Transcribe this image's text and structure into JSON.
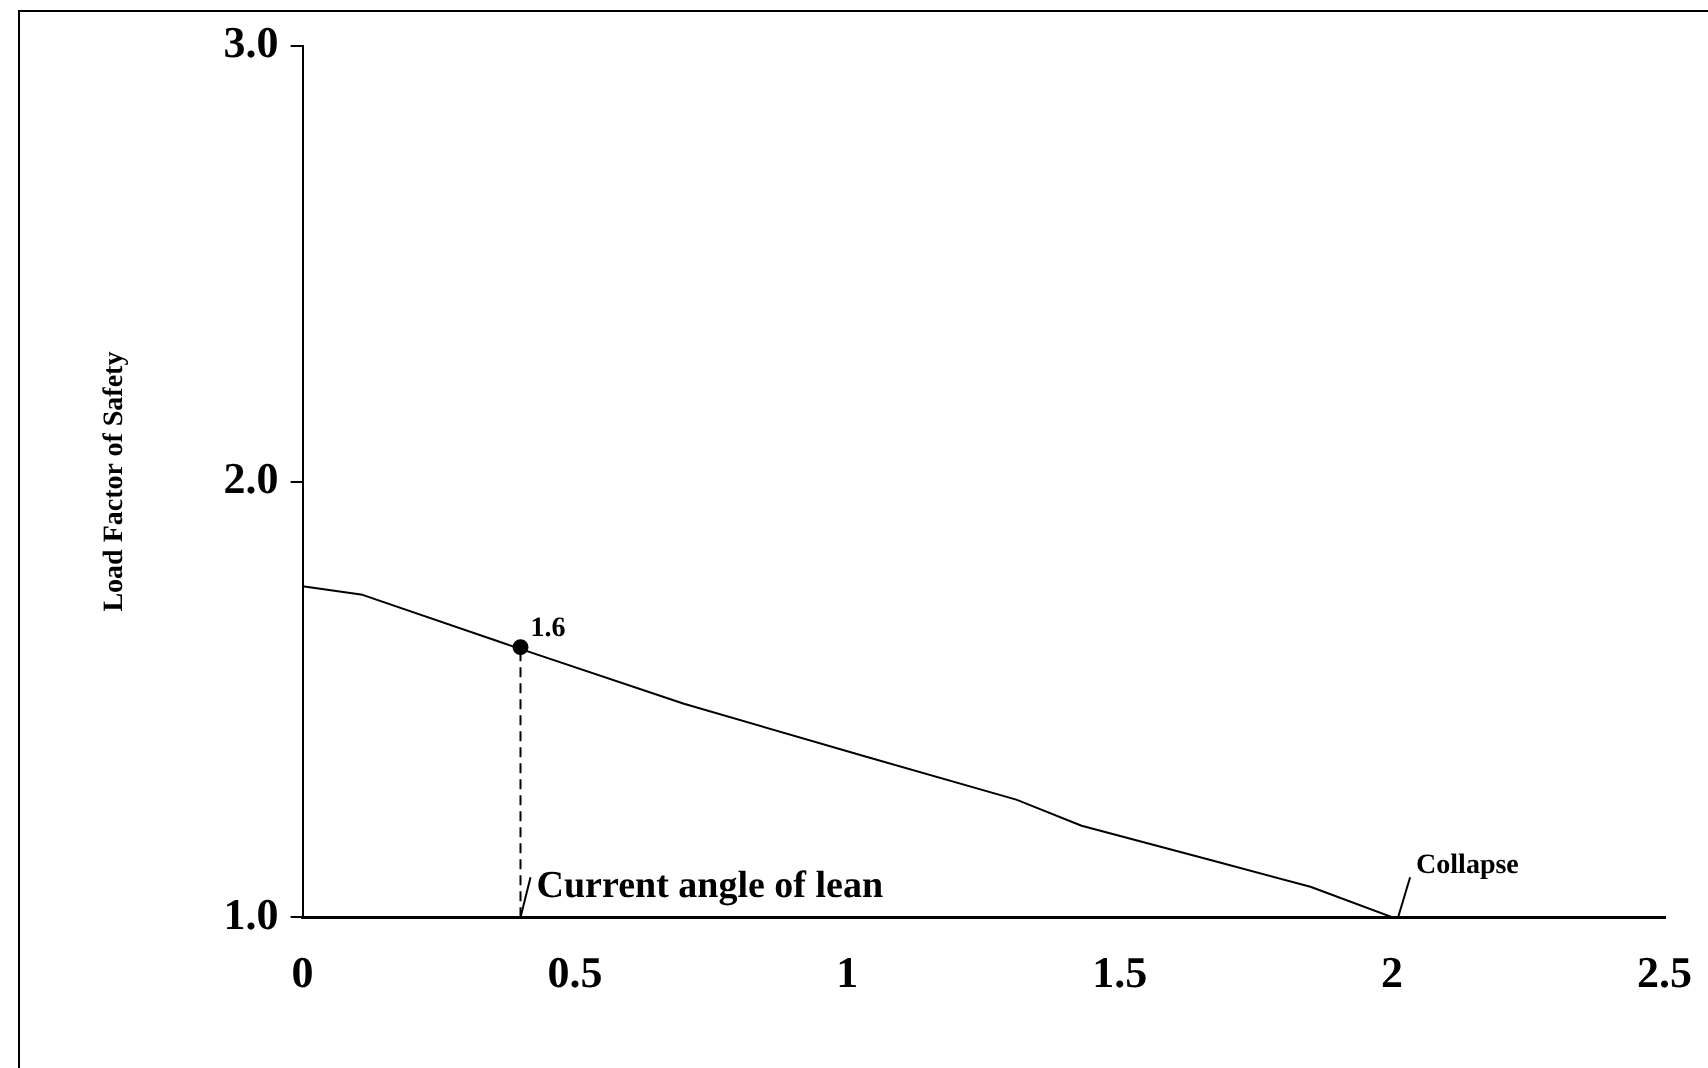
{
  "chart_data": {
    "type": "line",
    "ylabel": "Load Factor of Safety",
    "xlim": [
      0,
      2.5
    ],
    "xticks": [
      0,
      0.5,
      1,
      1.5,
      2,
      2.5
    ],
    "ylim": [
      1,
      3
    ],
    "yticks": [
      {
        "value": 1,
        "label": "1.0"
      },
      {
        "value": 2,
        "label": "2.0"
      },
      {
        "value": 3,
        "label": "3.0"
      }
    ],
    "grid": false,
    "legend": false,
    "series": [
      {
        "type": "line",
        "color": "#000000",
        "marker": "none",
        "line_style": "solid",
        "x": [
          0,
          0.11,
          0.39,
          0.7,
          1.03,
          1.31,
          1.43,
          1.67,
          1.85,
          2.0
        ],
        "values": [
          1.76,
          1.74,
          1.62,
          1.49,
          1.37,
          1.27,
          1.21,
          1.13,
          1.07,
          1.0
        ]
      },
      {
        "type": "scatter",
        "color": "#000000",
        "marker": "circle",
        "x": [
          0.4
        ],
        "values": [
          1.62
        ],
        "value_labels": [
          "1.6"
        ]
      }
    ],
    "ref_lines": [
      {
        "axis": "x",
        "value": 0.4,
        "line_style": "dashed",
        "color": "#000000"
      }
    ],
    "annotations": [
      {
        "text": "Current angle of lean",
        "x": 0.4,
        "y": 1.0
      },
      {
        "text": "Collapse",
        "x": 2.0,
        "y": 1.0
      }
    ]
  }
}
